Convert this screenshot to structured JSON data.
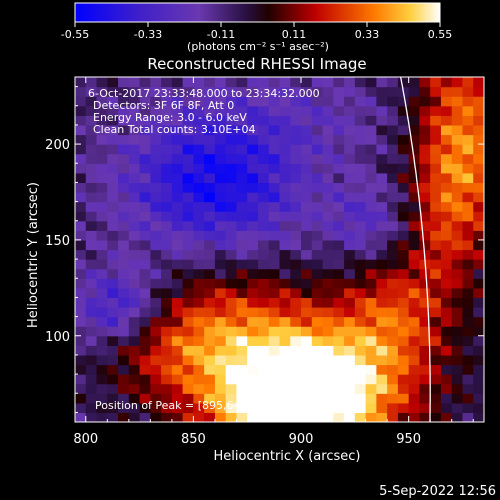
{
  "chart_data": {
    "type": "heatmap",
    "title": "Reconstructed RHESSI Image",
    "xlabel": "Heliocentric X (arcsec)",
    "ylabel": "Heliocentric Y (arcsec)",
    "xlim": [
      795,
      985
    ],
    "ylim": [
      55,
      235
    ],
    "xticks": [
      800,
      850,
      900,
      950
    ],
    "yticks": [
      100,
      150,
      200
    ],
    "colorbar": {
      "min": -0.55,
      "max": 0.55,
      "ticks": [
        "-0.55",
        "-0.33",
        "-0.11",
        "0.11",
        "0.33",
        "0.55"
      ],
      "units": "(photons cm⁻² s⁻¹ asec⁻²)"
    },
    "annotations": [
      "6-Oct-2017 23:33:48.000 to 23:34:32.000",
      "Detectors: 3F 6F 8F, Att 0",
      "Energy Range: 3.0 - 6.0 keV",
      "Clean    Total counts: 3.10E+04"
    ],
    "peak_label": "Position of Peak = [895,64]",
    "peak": [
      895,
      64
    ],
    "limb_color": "#ffffff",
    "colormap": [
      "#0000ff",
      "#5a2db4",
      "#000000",
      "#c80000",
      "#ff8c00",
      "#ffffff"
    ]
  },
  "footer": {
    "date": "5-Sep-2022 12:56"
  }
}
